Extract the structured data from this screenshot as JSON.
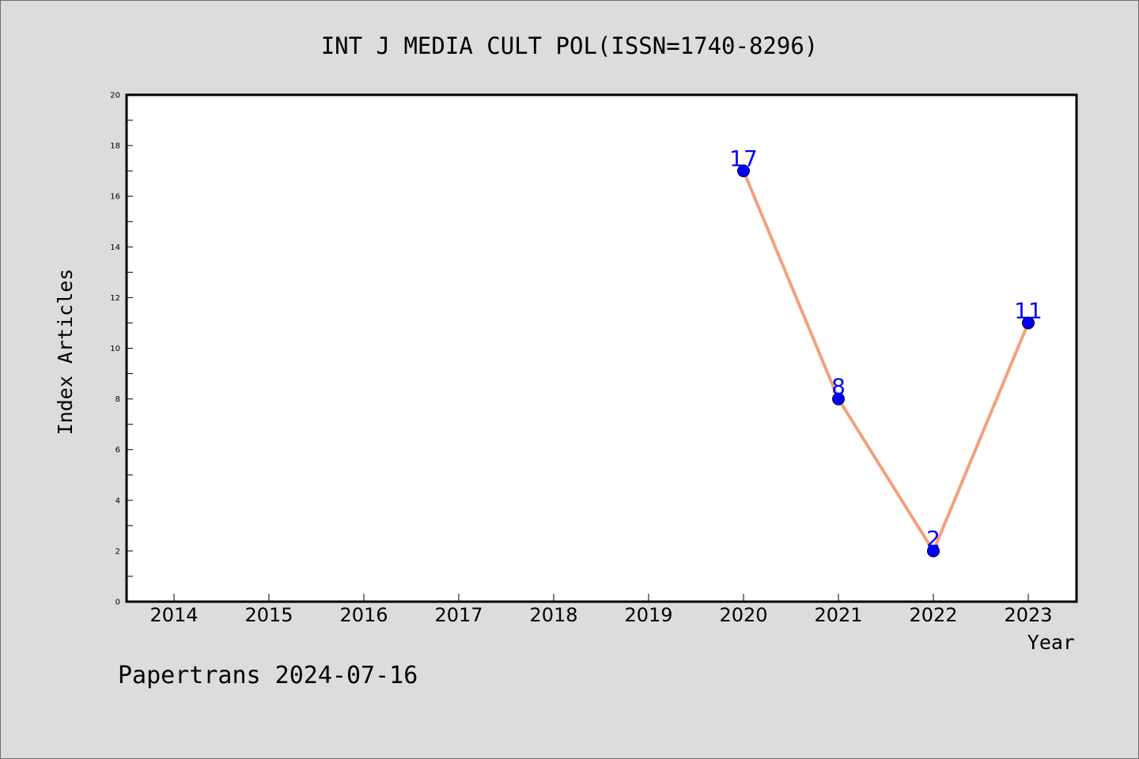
{
  "chart_data": {
    "type": "line",
    "title": "INT J MEDIA CULT POL(ISSN=1740-8296)",
    "xlabel": "Year",
    "ylabel": "Index Articles",
    "categories": [
      "2014",
      "2015",
      "2016",
      "2017",
      "2018",
      "2019",
      "2020",
      "2021",
      "2022",
      "2023"
    ],
    "y_ticks": [
      "0",
      "2",
      "4",
      "6",
      "8",
      "10",
      "12",
      "14",
      "16",
      "18",
      "20"
    ],
    "ylim": [
      0,
      20
    ],
    "grid": false,
    "series": [
      {
        "x": [
          "2020",
          "2021",
          "2022",
          "2023"
        ],
        "values": [
          17,
          8,
          2,
          11
        ],
        "data_labels": [
          "17",
          "8",
          "2",
          "11"
        ]
      }
    ],
    "colors": {
      "line": "#f4a07c",
      "marker": "#0000ff",
      "data_label": "#0000ff",
      "background": "#dcdcdc",
      "plot_background": "#ffffff"
    }
  },
  "footer": "Papertrans 2024-07-16"
}
